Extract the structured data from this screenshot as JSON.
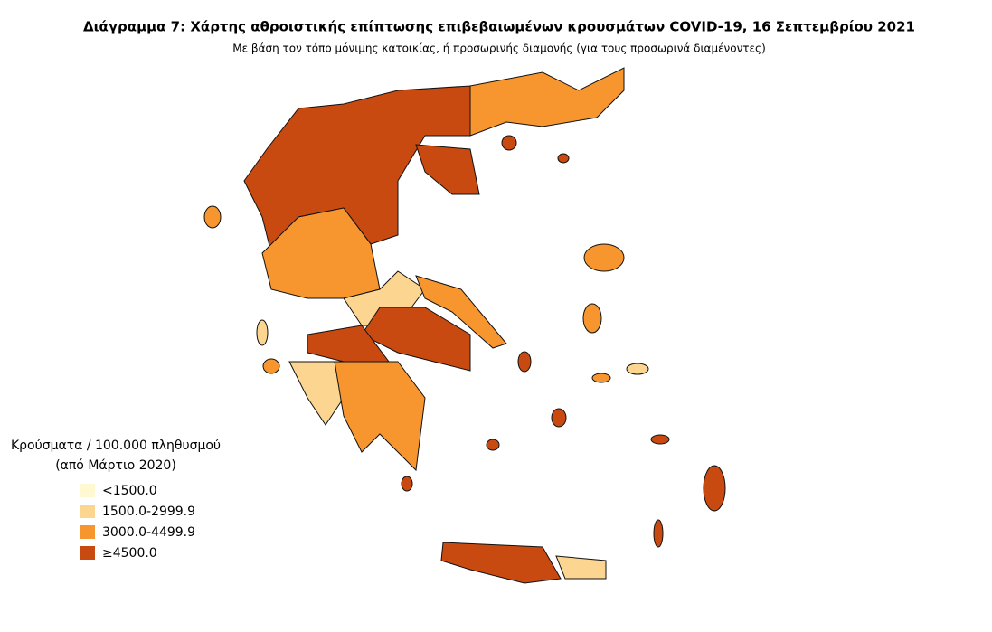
{
  "header": {
    "title": "Διάγραμμα 7: Χάρτης αθροιστικής επίπτωσης επιβεβαιωμένων κρουσμάτων COVID-19, 16 Σεπτεμβρίου 2021",
    "subtitle": "Με βάση τον τόπο μόνιμης κατοικίας, ή προσωρινής διαμονής (για τους προσωρινά διαμένοντες)"
  },
  "legend": {
    "title": [
      "Κρούσματα / 100.000 πληθυσμού",
      "(από Μάρτιο 2020)"
    ],
    "items": [
      {
        "label": "<1500.0",
        "color": "#fff8d0"
      },
      {
        "label": "1500.0-2999.9",
        "color": "#fcd690"
      },
      {
        "label": "3000.0-4499.9",
        "color": "#f7962e"
      },
      {
        "label": "≥4500.0",
        "color": "#c84a10"
      }
    ]
  }
}
